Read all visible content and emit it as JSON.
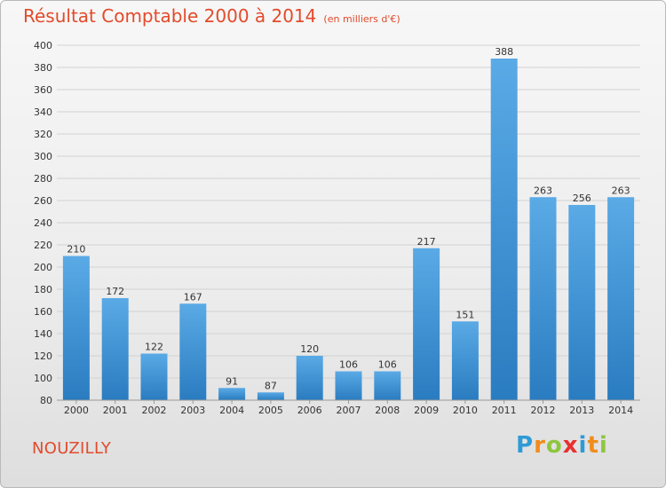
{
  "chart_data": {
    "type": "bar",
    "title": "Résultat Comptable 2000 à 2014",
    "subtitle": "(en milliers d'€)",
    "categories": [
      "2000",
      "2001",
      "2002",
      "2003",
      "2004",
      "2005",
      "2006",
      "2007",
      "2008",
      "2009",
      "2010",
      "2011",
      "2012",
      "2013",
      "2014"
    ],
    "values": [
      210,
      172,
      122,
      167,
      91,
      87,
      120,
      106,
      106,
      217,
      151,
      388,
      263,
      256,
      263
    ],
    "ylim": [
      80,
      400
    ],
    "yticks": [
      80,
      100,
      120,
      140,
      160,
      180,
      200,
      220,
      240,
      260,
      280,
      300,
      320,
      340,
      360,
      380,
      400
    ],
    "grid": true,
    "colors": {
      "bar_light": "#5aaae6",
      "bar_dark": "#2a7cc0",
      "title": "#e34a2b"
    }
  },
  "footer": {
    "location": "NOUZILLY"
  },
  "logo": {
    "letters": [
      "P",
      "r",
      "o",
      "x",
      "i",
      "t",
      "i"
    ]
  }
}
